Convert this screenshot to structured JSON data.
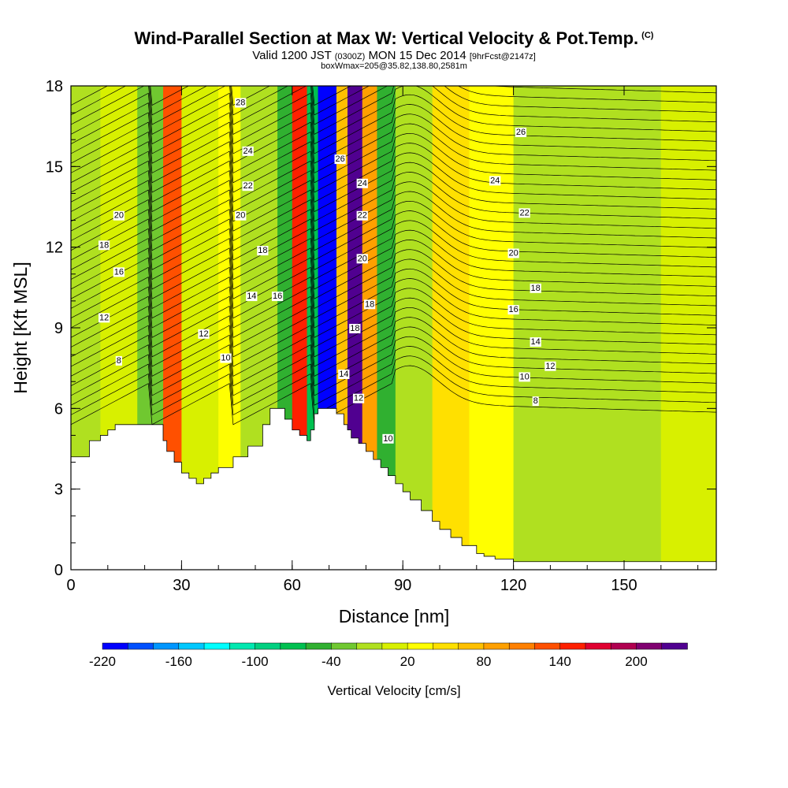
{
  "header": {
    "title": "Wind-Parallel Section at Max W: Vertical Velocity & Pot.Temp.",
    "copyright": "(C)",
    "valid_prefix": "Valid 1200 JST",
    "zulu": "(0300Z)",
    "valid_date": "MON 15 Dec 2014",
    "forecast": "[9hrFcst@2147z]",
    "boxwmax": "boxWmax=205@35.82,138.80,2581m"
  },
  "chart_data": {
    "type": "heatmap",
    "xlabel": "Distance [nm]",
    "ylabel": "Height [Kft MSL]",
    "xlim": [
      0,
      175
    ],
    "ylim": [
      0,
      18
    ],
    "x_ticks": [
      0,
      30,
      60,
      90,
      120,
      150
    ],
    "y_ticks": [
      0,
      3,
      6,
      9,
      12,
      15,
      18
    ],
    "terrain_profile": {
      "x": [
        0,
        5,
        8,
        10,
        12,
        14,
        20,
        25,
        26,
        28,
        30,
        32,
        34,
        36,
        38,
        40,
        44,
        48,
        52,
        54,
        56,
        58,
        60,
        62,
        64,
        65,
        66,
        67,
        68,
        70,
        72,
        74,
        75,
        76,
        78,
        80,
        82,
        84,
        86,
        88,
        90,
        92,
        95,
        98,
        100,
        103,
        106,
        110,
        112,
        115,
        120,
        130,
        150,
        175
      ],
      "height_kft": [
        4.2,
        4.8,
        5.0,
        5.2,
        5.4,
        5.4,
        5.4,
        4.8,
        4.4,
        4.0,
        3.6,
        3.4,
        3.2,
        3.4,
        3.6,
        3.8,
        4.2,
        4.6,
        5.4,
        6.0,
        6.0,
        5.6,
        5.2,
        5.0,
        4.8,
        5.2,
        5.8,
        6.0,
        6.0,
        6.0,
        5.8,
        5.4,
        5.2,
        4.9,
        4.7,
        4.4,
        4.1,
        3.8,
        3.5,
        3.2,
        2.9,
        2.6,
        2.2,
        1.8,
        1.5,
        1.2,
        0.9,
        0.6,
        0.5,
        0.4,
        0.3,
        0.3,
        0.3,
        0.3
      ]
    },
    "vertical_velocity_bands": [
      {
        "x": 0,
        "w": 8,
        "value": -20
      },
      {
        "x": 8,
        "w": 10,
        "value": 0
      },
      {
        "x": 18,
        "w": 7,
        "value": -40
      },
      {
        "x": 25,
        "w": 5,
        "value": 120
      },
      {
        "x": 30,
        "w": 10,
        "value": 0
      },
      {
        "x": 40,
        "w": 6,
        "value": 20
      },
      {
        "x": 46,
        "w": 10,
        "value": -20
      },
      {
        "x": 56,
        "w": 4,
        "value": -60
      },
      {
        "x": 60,
        "w": 4,
        "value": 140
      },
      {
        "x": 64,
        "w": 3,
        "value": -80
      },
      {
        "x": 67,
        "w": 5,
        "value": -220
      },
      {
        "x": 72,
        "w": 3,
        "value": 60
      },
      {
        "x": 75,
        "w": 4,
        "value": 220
      },
      {
        "x": 79,
        "w": 4,
        "value": 80
      },
      {
        "x": 83,
        "w": 5,
        "value": -60
      },
      {
        "x": 88,
        "w": 10,
        "value": -20
      },
      {
        "x": 98,
        "w": 10,
        "value": 40
      },
      {
        "x": 108,
        "w": 12,
        "value": 20
      },
      {
        "x": 120,
        "w": 40,
        "value": -20
      },
      {
        "x": 160,
        "w": 15,
        "value": 0
      }
    ],
    "theta_contour_labels": [
      {
        "x": 46,
        "y": 17.4,
        "t": "28"
      },
      {
        "x": 48,
        "y": 15.6,
        "t": "24"
      },
      {
        "x": 48,
        "y": 14.3,
        "t": "22"
      },
      {
        "x": 13,
        "y": 13.2,
        "t": "20"
      },
      {
        "x": 46,
        "y": 13.2,
        "t": "20"
      },
      {
        "x": 9,
        "y": 12.1,
        "t": "18"
      },
      {
        "x": 52,
        "y": 11.9,
        "t": "18"
      },
      {
        "x": 13,
        "y": 11.1,
        "t": "16"
      },
      {
        "x": 56,
        "y": 10.2,
        "t": "16"
      },
      {
        "x": 49,
        "y": 10.2,
        "t": "14"
      },
      {
        "x": 9,
        "y": 9.4,
        "t": "12"
      },
      {
        "x": 36,
        "y": 8.8,
        "t": "12"
      },
      {
        "x": 42,
        "y": 7.9,
        "t": "10"
      },
      {
        "x": 13,
        "y": 7.8,
        "t": "8"
      },
      {
        "x": 73,
        "y": 15.3,
        "t": "26"
      },
      {
        "x": 79,
        "y": 14.4,
        "t": "24"
      },
      {
        "x": 79,
        "y": 13.2,
        "t": "22"
      },
      {
        "x": 79,
        "y": 11.6,
        "t": "20"
      },
      {
        "x": 81,
        "y": 9.9,
        "t": "18"
      },
      {
        "x": 77,
        "y": 9.0,
        "t": "18"
      },
      {
        "x": 74,
        "y": 7.3,
        "t": "14"
      },
      {
        "x": 78,
        "y": 6.4,
        "t": "12"
      },
      {
        "x": 86,
        "y": 4.9,
        "t": "10"
      },
      {
        "x": 122,
        "y": 16.3,
        "t": "26"
      },
      {
        "x": 115,
        "y": 14.5,
        "t": "24"
      },
      {
        "x": 123,
        "y": 13.3,
        "t": "22"
      },
      {
        "x": 120,
        "y": 11.8,
        "t": "20"
      },
      {
        "x": 126,
        "y": 10.5,
        "t": "18"
      },
      {
        "x": 120,
        "y": 9.7,
        "t": "16"
      },
      {
        "x": 126,
        "y": 8.5,
        "t": "14"
      },
      {
        "x": 130,
        "y": 7.6,
        "t": "12"
      },
      {
        "x": 123,
        "y": 7.2,
        "t": "10"
      },
      {
        "x": 126,
        "y": 6.3,
        "t": "8"
      }
    ],
    "colorbar": {
      "label": "Vertical Velocity [cm/s]",
      "tick_labels": [
        "-220",
        "-160",
        "-100",
        "-40",
        "20",
        "80",
        "140",
        "200"
      ],
      "colors": [
        "#0000ff",
        "#0050ff",
        "#0096ff",
        "#00c8ff",
        "#00ffff",
        "#00e8b0",
        "#00d080",
        "#00c050",
        "#30b030",
        "#70c830",
        "#b0e020",
        "#d8f000",
        "#ffff00",
        "#ffe000",
        "#ffc000",
        "#ffa000",
        "#ff8000",
        "#ff5000",
        "#ff2000",
        "#e00030",
        "#b00050",
        "#800070",
        "#500090"
      ]
    }
  }
}
